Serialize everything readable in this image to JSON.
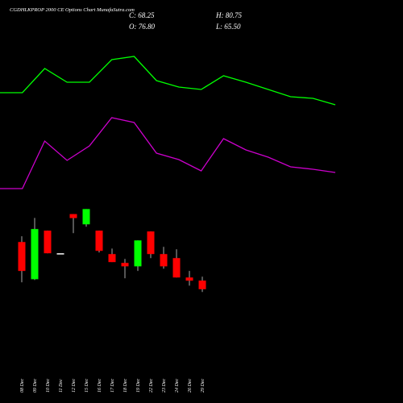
{
  "chart_data": [
    {
      "type": "line",
      "categories": [
        null,
        null,
        null,
        null,
        null,
        null,
        null,
        null,
        null,
        null,
        null,
        null,
        null,
        null,
        null,
        null
      ],
      "ylim": [
        0,
        100
      ],
      "series": [
        {
          "color": "#00ff00",
          "values": [
            77,
            77,
            83,
            79.6,
            79.6,
            85.2,
            86,
            80,
            78.4,
            77.8,
            81.2,
            79.6,
            77.8,
            76,
            75.6,
            74
          ]
        },
        {
          "color": "#cc00cc",
          "values": [
            53.2,
            53.2,
            65,
            60.2,
            63.8,
            70.8,
            69.6,
            62,
            60.4,
            57.6,
            65.6,
            62.8,
            61,
            58.6,
            58,
            57.2
          ]
        }
      ]
    },
    {
      "type": "candlestick",
      "title": "CGDHLKPROP 2000  CE Options  Chart MunafaSutra.com",
      "ohlc_labels": [
        "C: 68.25",
        "H: 80.75",
        "O: 76.80",
        "L: 65.50"
      ],
      "categories": [
        "08 Dec",
        "09 Dec",
        "10 Dec",
        "11 Dec",
        "12 Dec",
        "15 Dec",
        "16 Dec",
        "17 Dec",
        "18 Dec",
        "19 Dec",
        "22 Dec",
        "23 Dec",
        "24 Dec",
        "26 Dec",
        "29 Dec"
      ],
      "open": [
        115.2,
        78.2,
        126.5,
        104.0,
        143.0,
        132.8,
        126.5,
        103.2,
        94.4,
        91.0,
        125.7,
        103.2,
        99.2,
        79.9,
        76.8
      ],
      "high": [
        120.9,
        139.2,
        126.5,
        104.0,
        143.0,
        148.0,
        126.5,
        108.7,
        98.4,
        116.8,
        125.7,
        110.4,
        108.0,
        86.4,
        80.75
      ],
      "low": [
        75.1,
        77.4,
        104.0,
        104.0,
        124.0,
        130.4,
        104.8,
        95.2,
        79.1,
        86.4,
        99.2,
        88.6,
        79.9,
        71.8,
        65.5
      ],
      "close": [
        86.4,
        128.1,
        104.0,
        104.0,
        139.0,
        148.0,
        106.4,
        95.2,
        91.0,
        116.8,
        103.2,
        91.0,
        79.9,
        76.7,
        68.25
      ],
      "up_color": "#00ff00",
      "down_color": "#ff0000",
      "doji_color": "#ffffff",
      "ylim": [
        -45,
        356
      ]
    }
  ]
}
